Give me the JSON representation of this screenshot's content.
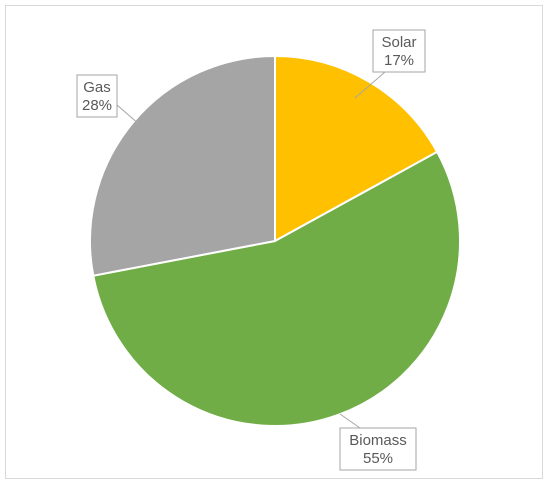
{
  "chart_data": {
    "type": "pie",
    "categories": [
      "Solar",
      "Biomass",
      "Gas"
    ],
    "values": [
      17,
      55,
      28
    ],
    "value_labels": [
      "17%",
      "55%",
      "28%"
    ],
    "colors": [
      "#FFC000",
      "#70AD47",
      "#A5A5A5"
    ],
    "start_angle_deg": 0,
    "direction": "clockwise",
    "title": "",
    "legend": "none",
    "data_labels": "callout-outside"
  }
}
